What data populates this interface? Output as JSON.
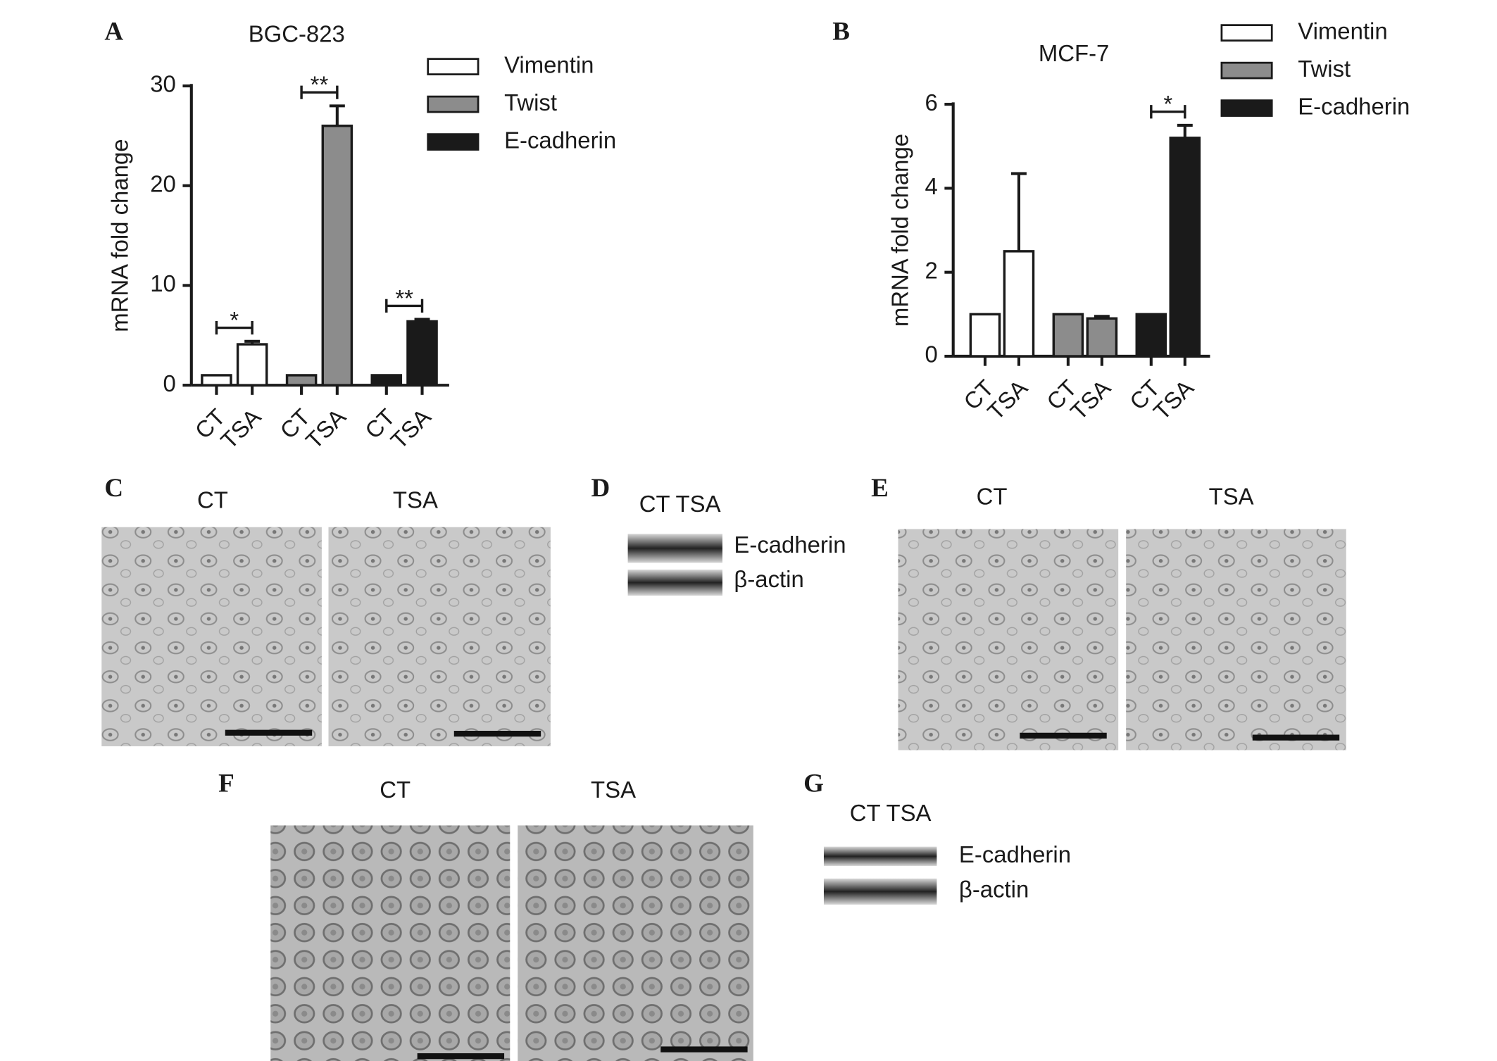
{
  "chart_data": [
    {
      "type": "bar",
      "label": "A",
      "title": "BGC-823",
      "y_label": "mRNA fold change",
      "categories": [
        "CT",
        "TSA",
        "CT",
        "TSA",
        "CT",
        "TSA"
      ],
      "series": [
        {
          "name": "Vimentin",
          "color": "#ffffff",
          "values": [
            1,
            4.1,
            null,
            null,
            null,
            null
          ],
          "errors": [
            null,
            0.3,
            null,
            null,
            null,
            null
          ]
        },
        {
          "name": "Twist",
          "color": "#8c8c8c",
          "values": [
            null,
            null,
            1,
            26,
            null,
            null
          ],
          "errors": [
            null,
            null,
            null,
            2,
            null,
            null
          ]
        },
        {
          "name": "E-cadherin",
          "color": "#1a1a1a",
          "values": [
            null,
            null,
            null,
            null,
            1,
            6.4
          ],
          "errors": [
            null,
            null,
            null,
            null,
            null,
            0.2
          ]
        }
      ],
      "annotations": [
        "*",
        "**",
        "**"
      ],
      "ylim": [
        0,
        30
      ],
      "yticks": [
        0,
        10,
        20,
        30
      ]
    },
    {
      "type": "bar",
      "label": "B",
      "title": "MCF-7",
      "y_label": "mRNA fold change",
      "categories": [
        "CT",
        "TSA",
        "CT",
        "TSA",
        "CT",
        "TSA"
      ],
      "series": [
        {
          "name": "Vimentin",
          "color": "#ffffff",
          "values": [
            1,
            2.5,
            null,
            null,
            null,
            null
          ],
          "errors": [
            null,
            1.85,
            null,
            null,
            null,
            null
          ]
        },
        {
          "name": "Twist",
          "color": "#8c8c8c",
          "values": [
            null,
            null,
            1,
            0.9,
            null,
            null
          ],
          "errors": [
            null,
            null,
            null,
            0.05,
            null,
            null
          ]
        },
        {
          "name": "E-cadherin",
          "color": "#1a1a1a",
          "values": [
            null,
            null,
            null,
            null,
            1,
            5.2
          ],
          "errors": [
            null,
            null,
            null,
            null,
            null,
            0.3
          ]
        }
      ],
      "annotations": [
        null,
        null,
        "*"
      ],
      "ylim": [
        0,
        6
      ],
      "yticks": [
        0,
        2,
        4,
        6
      ]
    }
  ],
  "panels": {
    "C": {
      "label": "C",
      "images": [
        "CT",
        "TSA"
      ]
    },
    "D": {
      "label": "D",
      "header": "CT TSA",
      "bands": [
        "E-cadherin",
        "β-actin"
      ]
    },
    "E": {
      "label": "E",
      "images": [
        "CT",
        "TSA"
      ]
    },
    "F": {
      "label": "F",
      "images": [
        "CT",
        "TSA"
      ]
    },
    "G": {
      "label": "G",
      "header": "CT TSA",
      "bands": [
        "E-cadherin",
        "β-actin"
      ]
    }
  }
}
